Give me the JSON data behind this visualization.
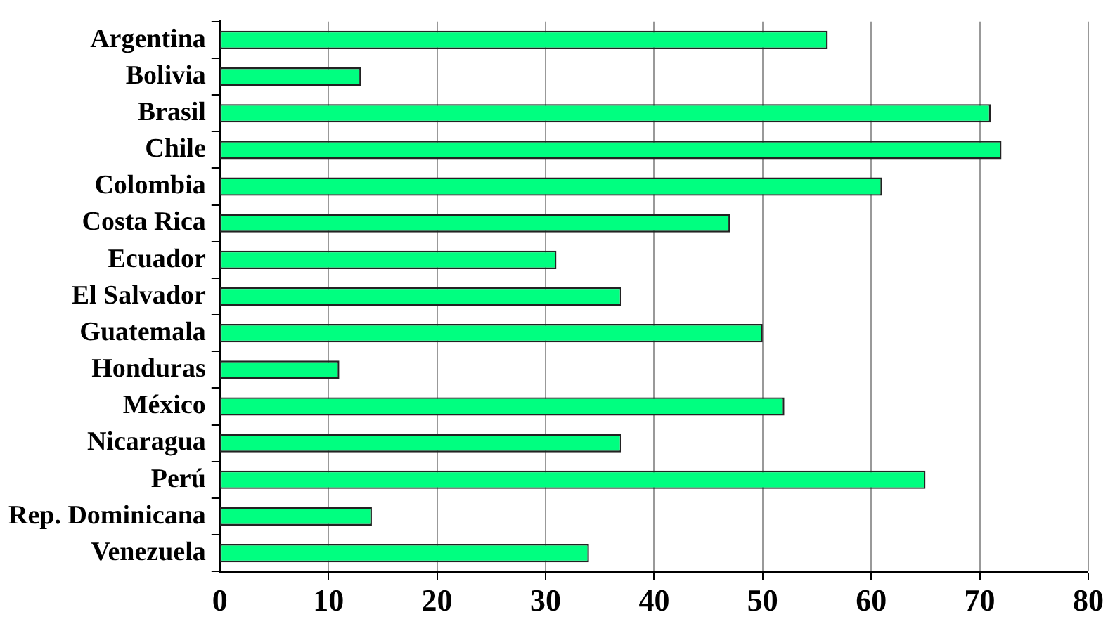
{
  "chart_data": {
    "type": "bar",
    "orientation": "horizontal",
    "categories": [
      "Argentina",
      "Bolivia",
      "Brasil",
      "Chile",
      "Colombia",
      "Costa Rica",
      "Ecuador",
      "El Salvador",
      "Guatemala",
      "Honduras",
      "México",
      "Nicaragua",
      "Perú",
      "Rep. Dominicana",
      "Venezuela"
    ],
    "values": [
      56,
      13,
      71,
      72,
      61,
      47,
      31,
      37,
      50,
      11,
      52,
      37,
      65,
      14,
      34
    ],
    "color": "#00ff80",
    "xlim": [
      0,
      80
    ],
    "xticks": [
      0,
      10,
      20,
      30,
      40,
      50,
      60,
      70,
      80
    ],
    "grid": "x",
    "legend": false
  }
}
